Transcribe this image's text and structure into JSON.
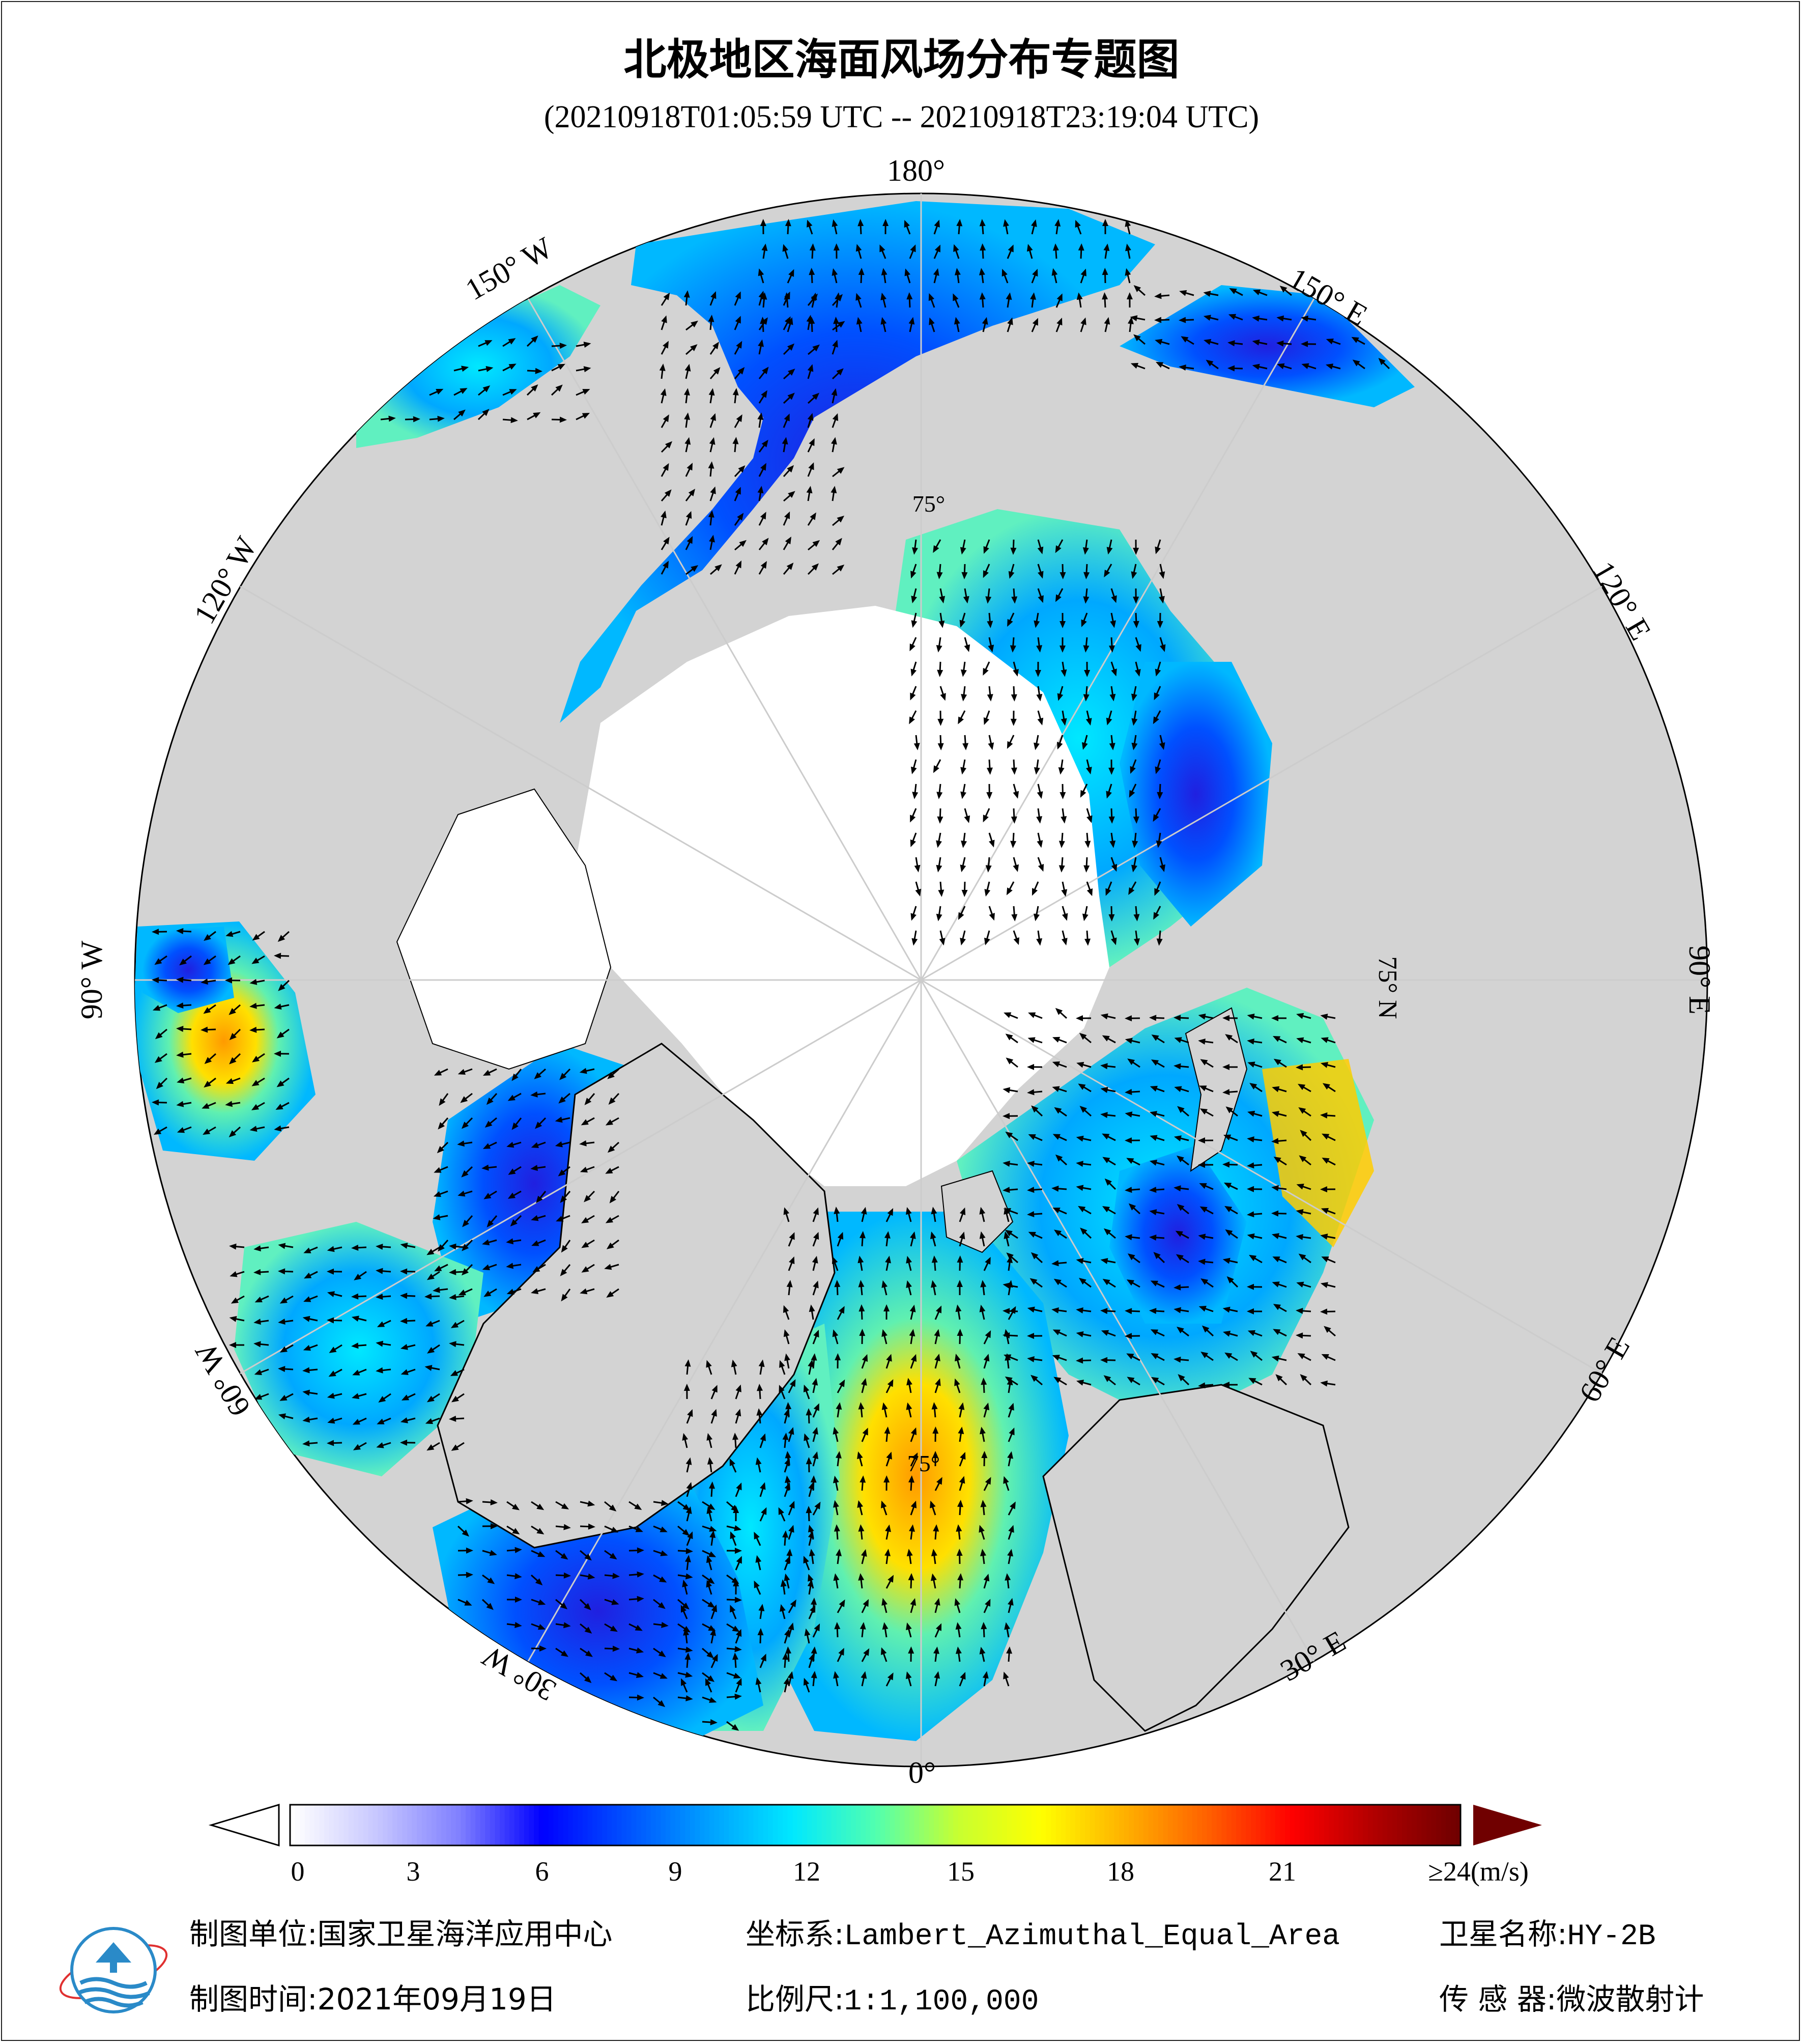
{
  "title": "北极地区海面风场分布专题图",
  "subtitle": "(20210918T01:05:59 UTC -- 20210918T23:19:04 UTC)",
  "map": {
    "projection": "Lambert_Azimuthal_Equal_Area",
    "colors": {
      "land": "#d3d3d3",
      "ice": "#ffffff",
      "coast": "#000000",
      "grid": "#cccccc"
    },
    "longitude_labels": [
      "180°",
      "150° E",
      "120° E",
      "90° E",
      "60° E",
      "30° E",
      "0°",
      "30° W",
      "60° W",
      "90° W",
      "120° W",
      "150° W"
    ],
    "latitude_labels": [
      "75° N",
      "75°",
      "75°"
    ]
  },
  "colorbar": {
    "ticks": [
      "0",
      "3",
      "6",
      "9",
      "12",
      "15",
      "18",
      "21",
      "≥24(m/s)"
    ],
    "colors": [
      "#ffffff",
      "#c8c8ff",
      "#8080ff",
      "#0000ff",
      "#0050ff",
      "#00a0ff",
      "#00e8ff",
      "#50ffb0",
      "#c8ff30",
      "#ffff00",
      "#ffb000",
      "#ff6000",
      "#ff0000",
      "#b00000",
      "#700000"
    ]
  },
  "footer": {
    "unit_label": "制图单位:",
    "unit_value": "国家卫星海洋应用中心",
    "coord_label": "坐标系:",
    "coord_value": "Lambert_Azimuthal_Equal_Area",
    "satellite_label": "卫星名称:",
    "satellite_value": "HY-2B",
    "date_label": "制图时间:",
    "date_value": "2021年09月19日",
    "scale_label": "比例尺:",
    "scale_value": "1:1,100,000",
    "sensor_label": "传 感 器:",
    "sensor_value": "微波散射计"
  },
  "logo": {
    "icon": "nsoas-globe-logo"
  }
}
